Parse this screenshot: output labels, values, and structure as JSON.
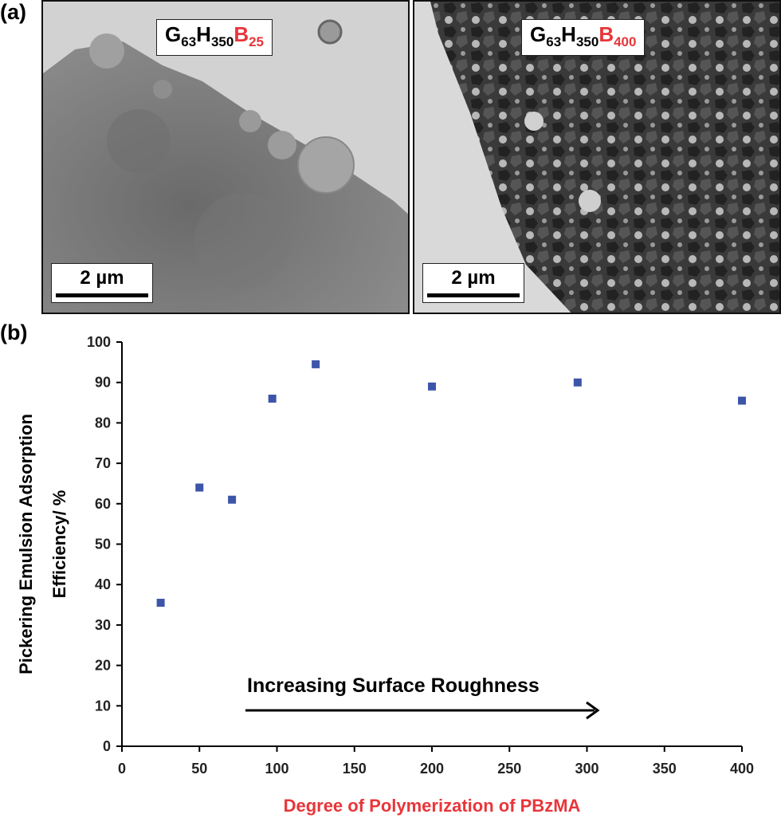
{
  "panel_a": {
    "letter": "(a)",
    "left_image": {
      "label_g": "G",
      "sub_g": "63",
      "label_h": "H",
      "sub_h": "350",
      "label_b": "B",
      "sub_b": "25",
      "scale_bar": "2 µm"
    },
    "right_image": {
      "label_g": "G",
      "sub_g": "63",
      "label_h": "H",
      "sub_h": "350",
      "label_b": "B",
      "sub_b": "400",
      "scale_bar": "2 µm"
    }
  },
  "panel_b": {
    "letter": "(b)"
  },
  "colors": {
    "marker": "#3d55a8",
    "accent_red": "#e8363a",
    "axis": "#000000"
  },
  "chart_data": {
    "type": "scatter",
    "x": [
      25,
      50,
      71,
      97,
      125,
      200,
      294,
      400
    ],
    "y": [
      35.5,
      64,
      61,
      86,
      94.5,
      89,
      90,
      85.5
    ],
    "xlim": [
      0,
      400
    ],
    "ylim": [
      0,
      100
    ],
    "xticks": [
      0,
      50,
      100,
      150,
      200,
      250,
      300,
      350,
      400
    ],
    "yticks": [
      0,
      10,
      20,
      30,
      40,
      50,
      60,
      70,
      80,
      90,
      100
    ],
    "xlabel": "Degree of Polymerization of PBzMA",
    "ylabel_line1": "Pickering Emulsion Adsorption",
    "ylabel_line2": "Efficiency/ %",
    "annotation": "Increasing Surface Roughness",
    "grid": false
  }
}
